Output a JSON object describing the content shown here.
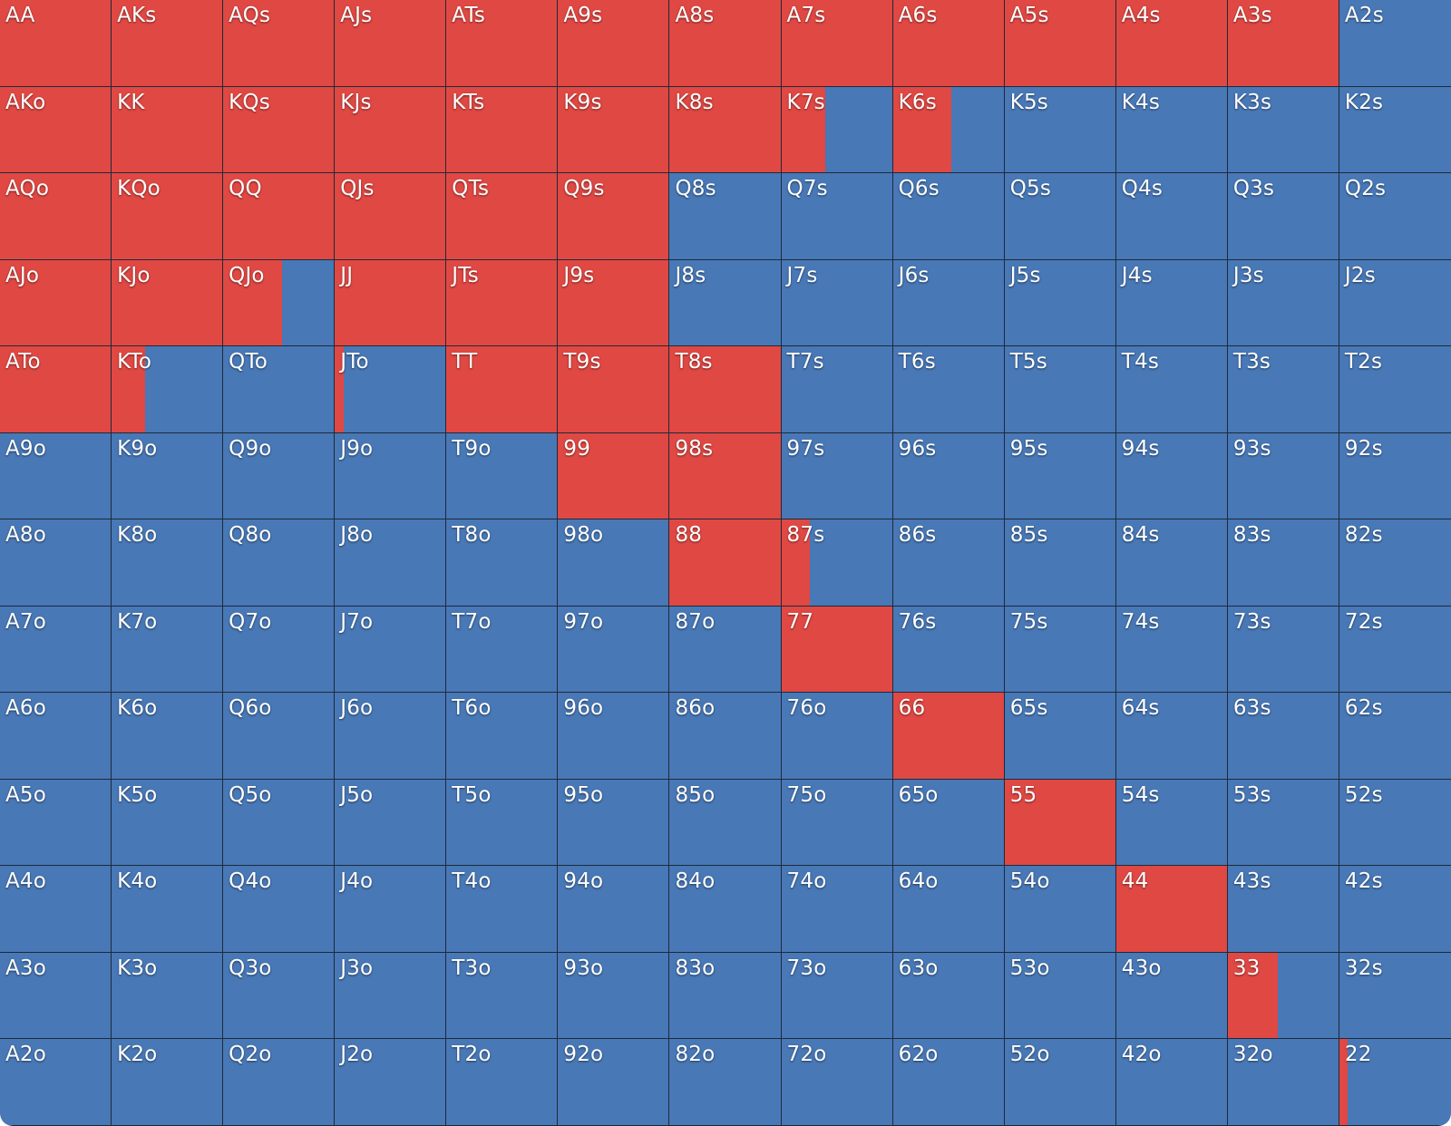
{
  "colors": {
    "raise": "#e04843",
    "fold": "#4878b6"
  },
  "chart_data": {
    "type": "heatmap",
    "legend": [
      "raise",
      "fold"
    ],
    "rows": [
      [
        {
          "hand": "AA",
          "raise": 1
        },
        {
          "hand": "AKs",
          "raise": 1
        },
        {
          "hand": "AQs",
          "raise": 1
        },
        {
          "hand": "AJs",
          "raise": 1
        },
        {
          "hand": "ATs",
          "raise": 1
        },
        {
          "hand": "A9s",
          "raise": 1
        },
        {
          "hand": "A8s",
          "raise": 1
        },
        {
          "hand": "A7s",
          "raise": 1
        },
        {
          "hand": "A6s",
          "raise": 1
        },
        {
          "hand": "A5s",
          "raise": 1
        },
        {
          "hand": "A4s",
          "raise": 1
        },
        {
          "hand": "A3s",
          "raise": 1
        },
        {
          "hand": "A2s",
          "raise": 0
        }
      ],
      [
        {
          "hand": "AKo",
          "raise": 1
        },
        {
          "hand": "KK",
          "raise": 1
        },
        {
          "hand": "KQs",
          "raise": 1
        },
        {
          "hand": "KJs",
          "raise": 1
        },
        {
          "hand": "KTs",
          "raise": 1
        },
        {
          "hand": "K9s",
          "raise": 1
        },
        {
          "hand": "K8s",
          "raise": 1
        },
        {
          "hand": "K7s",
          "raise": 0.4
        },
        {
          "hand": "K6s",
          "raise": 0.53
        },
        {
          "hand": "K5s",
          "raise": 0
        },
        {
          "hand": "K4s",
          "raise": 0
        },
        {
          "hand": "K3s",
          "raise": 0
        },
        {
          "hand": "K2s",
          "raise": 0
        }
      ],
      [
        {
          "hand": "AQo",
          "raise": 1
        },
        {
          "hand": "KQo",
          "raise": 1
        },
        {
          "hand": "QQ",
          "raise": 1
        },
        {
          "hand": "QJs",
          "raise": 1
        },
        {
          "hand": "QTs",
          "raise": 1
        },
        {
          "hand": "Q9s",
          "raise": 1
        },
        {
          "hand": "Q8s",
          "raise": 0
        },
        {
          "hand": "Q7s",
          "raise": 0
        },
        {
          "hand": "Q6s",
          "raise": 0
        },
        {
          "hand": "Q5s",
          "raise": 0
        },
        {
          "hand": "Q4s",
          "raise": 0
        },
        {
          "hand": "Q3s",
          "raise": 0
        },
        {
          "hand": "Q2s",
          "raise": 0
        }
      ],
      [
        {
          "hand": "AJo",
          "raise": 1
        },
        {
          "hand": "KJo",
          "raise": 1
        },
        {
          "hand": "QJo",
          "raise": 0.53
        },
        {
          "hand": "JJ",
          "raise": 1
        },
        {
          "hand": "JTs",
          "raise": 1
        },
        {
          "hand": "J9s",
          "raise": 1
        },
        {
          "hand": "J8s",
          "raise": 0
        },
        {
          "hand": "J7s",
          "raise": 0
        },
        {
          "hand": "J6s",
          "raise": 0
        },
        {
          "hand": "J5s",
          "raise": 0
        },
        {
          "hand": "J4s",
          "raise": 0
        },
        {
          "hand": "J3s",
          "raise": 0
        },
        {
          "hand": "J2s",
          "raise": 0
        }
      ],
      [
        {
          "hand": "ATo",
          "raise": 1
        },
        {
          "hand": "KTo",
          "raise": 0.3
        },
        {
          "hand": "QTo",
          "raise": 0
        },
        {
          "hand": "JTo",
          "raise": 0.08
        },
        {
          "hand": "TT",
          "raise": 1
        },
        {
          "hand": "T9s",
          "raise": 1
        },
        {
          "hand": "T8s",
          "raise": 1
        },
        {
          "hand": "T7s",
          "raise": 0
        },
        {
          "hand": "T6s",
          "raise": 0
        },
        {
          "hand": "T5s",
          "raise": 0
        },
        {
          "hand": "T4s",
          "raise": 0
        },
        {
          "hand": "T3s",
          "raise": 0
        },
        {
          "hand": "T2s",
          "raise": 0
        }
      ],
      [
        {
          "hand": "A9o",
          "raise": 0
        },
        {
          "hand": "K9o",
          "raise": 0
        },
        {
          "hand": "Q9o",
          "raise": 0
        },
        {
          "hand": "J9o",
          "raise": 0
        },
        {
          "hand": "T9o",
          "raise": 0
        },
        {
          "hand": "99",
          "raise": 1
        },
        {
          "hand": "98s",
          "raise": 1
        },
        {
          "hand": "97s",
          "raise": 0
        },
        {
          "hand": "96s",
          "raise": 0
        },
        {
          "hand": "95s",
          "raise": 0
        },
        {
          "hand": "94s",
          "raise": 0
        },
        {
          "hand": "93s",
          "raise": 0
        },
        {
          "hand": "92s",
          "raise": 0
        }
      ],
      [
        {
          "hand": "A8o",
          "raise": 0
        },
        {
          "hand": "K8o",
          "raise": 0
        },
        {
          "hand": "Q8o",
          "raise": 0
        },
        {
          "hand": "J8o",
          "raise": 0
        },
        {
          "hand": "T8o",
          "raise": 0
        },
        {
          "hand": "98o",
          "raise": 0
        },
        {
          "hand": "88",
          "raise": 1
        },
        {
          "hand": "87s",
          "raise": 0.26
        },
        {
          "hand": "86s",
          "raise": 0
        },
        {
          "hand": "85s",
          "raise": 0
        },
        {
          "hand": "84s",
          "raise": 0
        },
        {
          "hand": "83s",
          "raise": 0
        },
        {
          "hand": "82s",
          "raise": 0
        }
      ],
      [
        {
          "hand": "A7o",
          "raise": 0
        },
        {
          "hand": "K7o",
          "raise": 0
        },
        {
          "hand": "Q7o",
          "raise": 0
        },
        {
          "hand": "J7o",
          "raise": 0
        },
        {
          "hand": "T7o",
          "raise": 0
        },
        {
          "hand": "97o",
          "raise": 0
        },
        {
          "hand": "87o",
          "raise": 0
        },
        {
          "hand": "77",
          "raise": 1
        },
        {
          "hand": "76s",
          "raise": 0
        },
        {
          "hand": "75s",
          "raise": 0
        },
        {
          "hand": "74s",
          "raise": 0
        },
        {
          "hand": "73s",
          "raise": 0
        },
        {
          "hand": "72s",
          "raise": 0
        }
      ],
      [
        {
          "hand": "A6o",
          "raise": 0
        },
        {
          "hand": "K6o",
          "raise": 0
        },
        {
          "hand": "Q6o",
          "raise": 0
        },
        {
          "hand": "J6o",
          "raise": 0
        },
        {
          "hand": "T6o",
          "raise": 0
        },
        {
          "hand": "96o",
          "raise": 0
        },
        {
          "hand": "86o",
          "raise": 0
        },
        {
          "hand": "76o",
          "raise": 0
        },
        {
          "hand": "66",
          "raise": 1
        },
        {
          "hand": "65s",
          "raise": 0
        },
        {
          "hand": "64s",
          "raise": 0
        },
        {
          "hand": "63s",
          "raise": 0
        },
        {
          "hand": "62s",
          "raise": 0
        }
      ],
      [
        {
          "hand": "A5o",
          "raise": 0
        },
        {
          "hand": "K5o",
          "raise": 0
        },
        {
          "hand": "Q5o",
          "raise": 0
        },
        {
          "hand": "J5o",
          "raise": 0
        },
        {
          "hand": "T5o",
          "raise": 0
        },
        {
          "hand": "95o",
          "raise": 0
        },
        {
          "hand": "85o",
          "raise": 0
        },
        {
          "hand": "75o",
          "raise": 0
        },
        {
          "hand": "65o",
          "raise": 0
        },
        {
          "hand": "55",
          "raise": 1
        },
        {
          "hand": "54s",
          "raise": 0
        },
        {
          "hand": "53s",
          "raise": 0
        },
        {
          "hand": "52s",
          "raise": 0
        }
      ],
      [
        {
          "hand": "A4o",
          "raise": 0
        },
        {
          "hand": "K4o",
          "raise": 0
        },
        {
          "hand": "Q4o",
          "raise": 0
        },
        {
          "hand": "J4o",
          "raise": 0
        },
        {
          "hand": "T4o",
          "raise": 0
        },
        {
          "hand": "94o",
          "raise": 0
        },
        {
          "hand": "84o",
          "raise": 0
        },
        {
          "hand": "74o",
          "raise": 0
        },
        {
          "hand": "64o",
          "raise": 0
        },
        {
          "hand": "54o",
          "raise": 0
        },
        {
          "hand": "44",
          "raise": 1
        },
        {
          "hand": "43s",
          "raise": 0
        },
        {
          "hand": "42s",
          "raise": 0
        }
      ],
      [
        {
          "hand": "A3o",
          "raise": 0
        },
        {
          "hand": "K3o",
          "raise": 0
        },
        {
          "hand": "Q3o",
          "raise": 0
        },
        {
          "hand": "J3o",
          "raise": 0
        },
        {
          "hand": "T3o",
          "raise": 0
        },
        {
          "hand": "93o",
          "raise": 0
        },
        {
          "hand": "83o",
          "raise": 0
        },
        {
          "hand": "73o",
          "raise": 0
        },
        {
          "hand": "63o",
          "raise": 0
        },
        {
          "hand": "53o",
          "raise": 0
        },
        {
          "hand": "43o",
          "raise": 0
        },
        {
          "hand": "33",
          "raise": 0.45
        },
        {
          "hand": "32s",
          "raise": 0
        }
      ],
      [
        {
          "hand": "A2o",
          "raise": 0
        },
        {
          "hand": "K2o",
          "raise": 0
        },
        {
          "hand": "Q2o",
          "raise": 0
        },
        {
          "hand": "J2o",
          "raise": 0
        },
        {
          "hand": "T2o",
          "raise": 0
        },
        {
          "hand": "92o",
          "raise": 0
        },
        {
          "hand": "82o",
          "raise": 0
        },
        {
          "hand": "72o",
          "raise": 0
        },
        {
          "hand": "62o",
          "raise": 0
        },
        {
          "hand": "52o",
          "raise": 0
        },
        {
          "hand": "42o",
          "raise": 0
        },
        {
          "hand": "32o",
          "raise": 0
        },
        {
          "hand": "22",
          "raise": 0.07
        }
      ]
    ]
  }
}
